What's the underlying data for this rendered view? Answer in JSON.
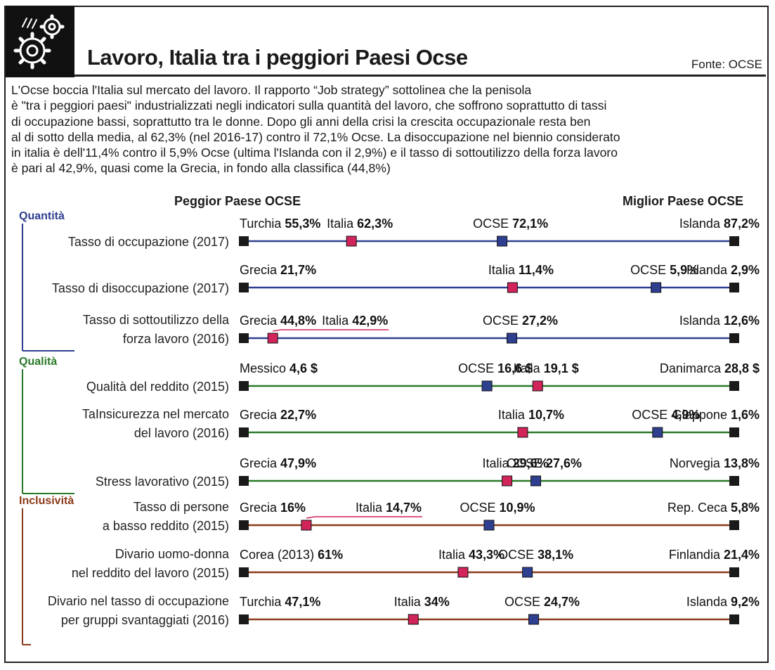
{
  "header": {
    "title": "Lavoro, Italia tra i peggiori Paesi Ocse",
    "source": "Fonte: OCSE",
    "logo_icon": "gears-icon"
  },
  "intro": {
    "lines": [
      "L'Ocse boccia l'Italia sul mercato del lavoro. Il rapporto “Job strategy” sottolinea che la penisola",
      "è \"tra i peggiori paesi\" industrializzati negli indicatori sulla quantità del lavoro, che soffrono soprattutto di tassi",
      "di occupazione bassi, soprattutto tra le donne. Dopo gli anni della crisi la crescita occupazionale resta ben",
      "al di sotto della media, al 62,3% (nel 2016-17) contro il 72,1% Ocse. La disoccupazione nel biennio considerato",
      "in italia è dell'11,4% contro il 5,9% Ocse (ultima l'Islanda con il 2,9%) e il tasso di sottoutilizzo della forza lavoro",
      "è pari al 42,9%, quasi come la Grecia, in fondo alla classifica (44,8%)"
    ]
  },
  "columns": {
    "worst": "Peggior Paese OCSE",
    "best": "Miglior Paese OCSE"
  },
  "colors": {
    "quantita": "#2e3f8f",
    "qualita": "#2a7a2a",
    "inclusivita": "#8a3a1a",
    "italia_marker": "#d0245a",
    "ocse_marker": "#2e3f8f",
    "end_marker": "#1a1a1a"
  },
  "chart_data": {
    "type": "dot-range",
    "categories": [
      {
        "name": "Quantità",
        "color_key": "quantita",
        "indicators": [
          {
            "label": [
              "Tasso di occupazione (2017)"
            ],
            "worst": {
              "country": "Turchia",
              "value": "55,3%",
              "num": 55.3
            },
            "italia": {
              "country": "Italia",
              "value": "62,3%",
              "num": 62.3
            },
            "ocse": {
              "country": "OCSE",
              "value": "72,1%",
              "num": 72.1
            },
            "best": {
              "country": "Islanda",
              "value": "87,2%",
              "num": 87.2
            }
          },
          {
            "label": [
              "Tasso di disoccupazione (2017)"
            ],
            "worst": {
              "country": "Grecia",
              "value": "21,7%",
              "num": 21.7
            },
            "italia": {
              "country": "Italia",
              "value": "11,4%",
              "num": 11.4
            },
            "ocse": {
              "country": "OCSE",
              "value": "5,9%",
              "num": 5.9
            },
            "best": {
              "country": "Islanda",
              "value": "2,9%",
              "num": 2.9
            }
          },
          {
            "label": [
              "Tasso di sottoutilizzo della",
              "forza lavoro (2016)"
            ],
            "worst": {
              "country": "Grecia",
              "value": "44,8%",
              "num": 44.8
            },
            "italia": {
              "country": "Italia",
              "value": "42,9%",
              "num": 42.9
            },
            "ocse": {
              "country": "OCSE",
              "value": "27,2%",
              "num": 27.2
            },
            "best": {
              "country": "Islanda",
              "value": "12,6%",
              "num": 12.6
            }
          }
        ]
      },
      {
        "name": "Qualità",
        "color_key": "qualita",
        "indicators": [
          {
            "label": [
              "Qualità del reddito (2015)"
            ],
            "worst": {
              "country": "Messico",
              "value": "4,6 $",
              "num": 4.6
            },
            "italia": {
              "country": "Italia",
              "value": "19,1 $",
              "num": 19.1
            },
            "ocse": {
              "country": "OCSE",
              "value": "16,6 $",
              "num": 16.6
            },
            "best": {
              "country": "Danimarca",
              "value": "28,8 $",
              "num": 28.8
            }
          },
          {
            "label": [
              "TaInsicurezza nel mercato",
              "del lavoro (2016)"
            ],
            "worst": {
              "country": "Grecia",
              "value": "22,7%",
              "num": 22.7
            },
            "italia": {
              "country": "Italia",
              "value": "10,7%",
              "num": 10.7
            },
            "ocse": {
              "country": "OCSE",
              "value": "4,9%",
              "num": 4.9
            },
            "best": {
              "country": "Giappone",
              "value": "1,6%",
              "num": 1.6
            }
          },
          {
            "label": [
              "Stress lavorativo (2015)"
            ],
            "worst": {
              "country": "Grecia",
              "value": "47,9%",
              "num": 47.9
            },
            "italia": {
              "country": "Italia",
              "value": "29,6%",
              "num": 29.6
            },
            "ocse": {
              "country": "OCSE",
              "value": "27,6%",
              "num": 27.6
            },
            "best": {
              "country": "Norvegia",
              "value": "13,8%",
              "num": 13.8
            }
          }
        ]
      },
      {
        "name": "Inclusività",
        "color_key": "inclusivita",
        "indicators": [
          {
            "label": [
              "Tasso di persone",
              "a basso reddito (2015)"
            ],
            "worst": {
              "country": "Grecia",
              "value": "16%",
              "num": 16
            },
            "italia": {
              "country": "Italia",
              "value": "14,7%",
              "num": 14.7
            },
            "ocse": {
              "country": "OCSE",
              "value": "10,9%",
              "num": 10.9
            },
            "best": {
              "country": "Rep. Ceca",
              "value": "5,8%",
              "num": 5.8
            }
          },
          {
            "label": [
              "Divario uomo-donna",
              "nel reddito del lavoro (2015)"
            ],
            "worst": {
              "country": "Corea (2013)",
              "value": "61%",
              "num": 61
            },
            "italia": {
              "country": "Italia",
              "value": "43,3%",
              "num": 43.3
            },
            "ocse": {
              "country": "OCSE",
              "value": "38,1%",
              "num": 38.1
            },
            "best": {
              "country": "Finlandia",
              "value": "21,4%",
              "num": 21.4
            }
          },
          {
            "label": [
              "Divario nel tasso di occupazione",
              "per gruppi svantaggiati (2016)"
            ],
            "worst": {
              "country": "Turchia",
              "value": "47,1%",
              "num": 47.1
            },
            "italia": {
              "country": "Italia",
              "value": "34%",
              "num": 34
            },
            "ocse": {
              "country": "OCSE",
              "value": "24,7%",
              "num": 24.7
            },
            "best": {
              "country": "Islanda",
              "value": "9,2%",
              "num": 9.2
            }
          }
        ]
      }
    ]
  }
}
